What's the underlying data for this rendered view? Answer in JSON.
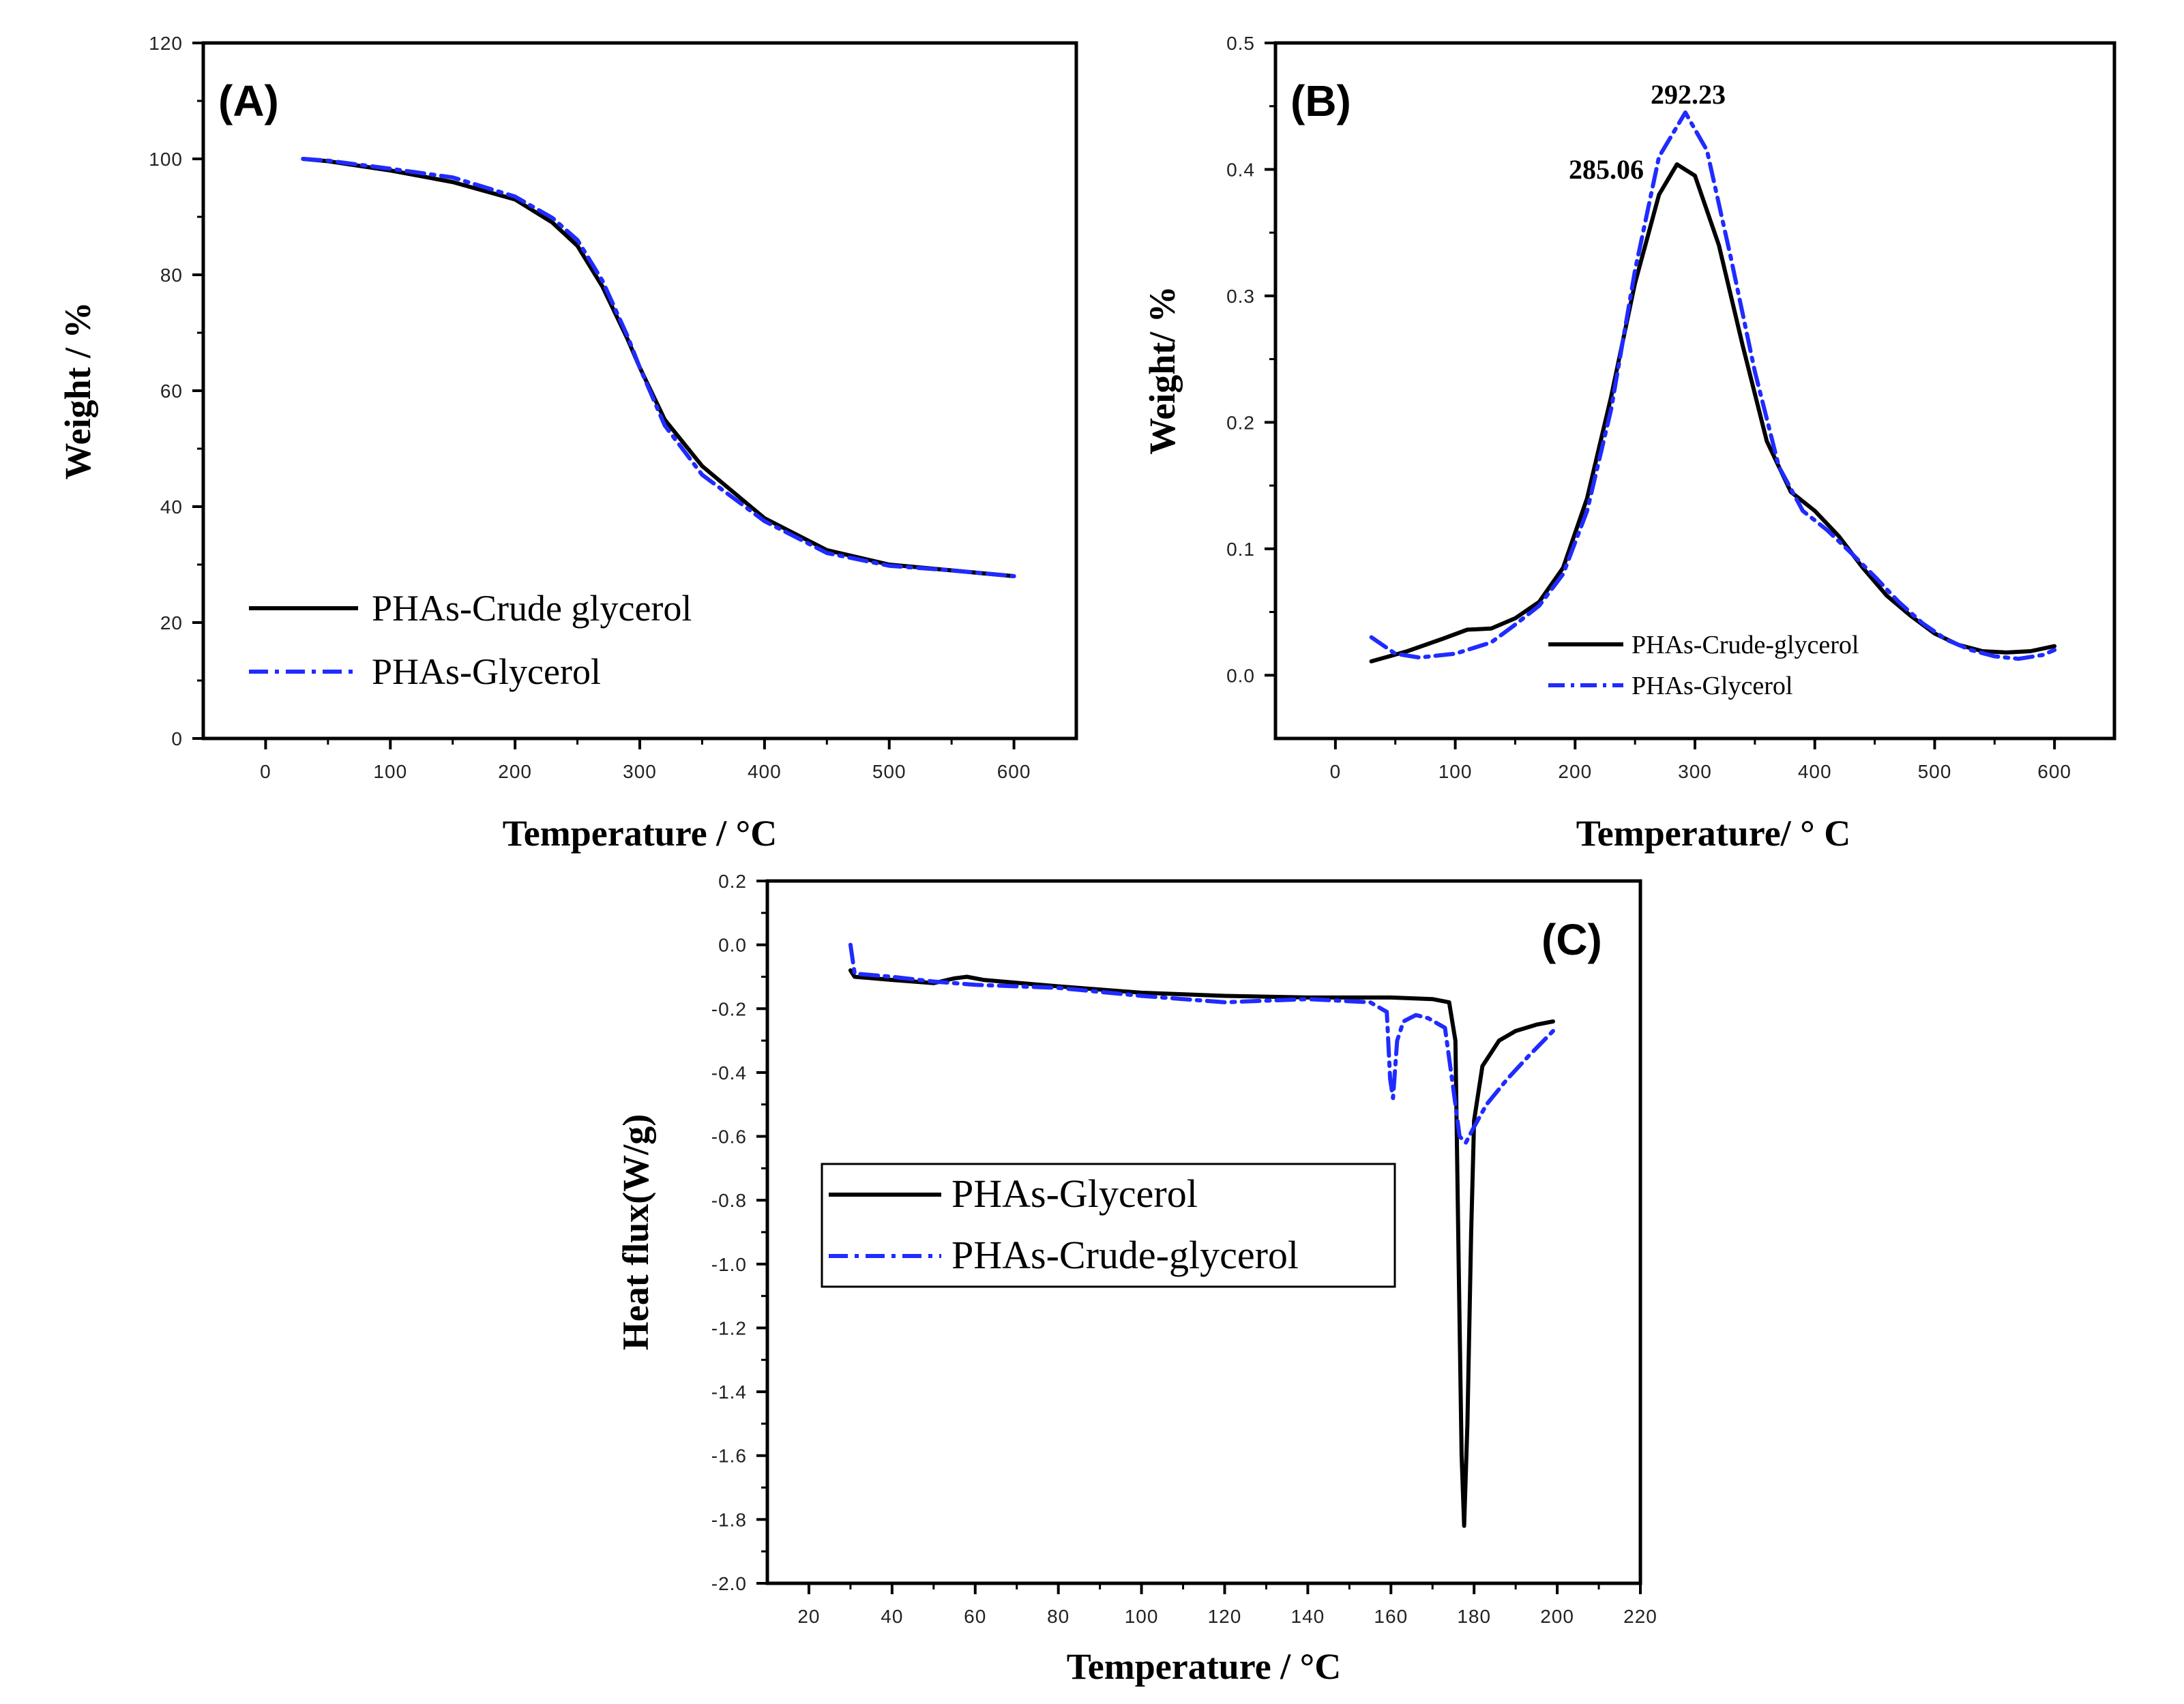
{
  "colors": {
    "black": "#000000",
    "blue": "#1f2bff"
  },
  "chart_data": [
    {
      "type": "line",
      "panel_label": "(A)",
      "xlabel": "Temperature / °C",
      "ylabel": "Weight / %",
      "xlim": [
        -50,
        650
      ],
      "ylim": [
        0,
        120
      ],
      "xticks": [
        "0",
        "100",
        "200",
        "300",
        "400",
        "500",
        "600"
      ],
      "yticks": [
        "0",
        "20",
        "40",
        "60",
        "80",
        "100",
        "120"
      ],
      "legend": [
        "PHAs-Crude glycerol",
        "PHAs-Glycerol"
      ],
      "legend_position": "bottom-left",
      "series": [
        {
          "name": "PHAs-Crude glycerol",
          "style": "solid",
          "color": "#000000",
          "x": [
            30,
            50,
            100,
            150,
            200,
            230,
            250,
            270,
            290,
            300,
            320,
            350,
            400,
            450,
            500,
            550,
            600
          ],
          "y": [
            100,
            99.6,
            98,
            96,
            93,
            89,
            85,
            78,
            69,
            64,
            55,
            47,
            38,
            32.5,
            30,
            29,
            28
          ]
        },
        {
          "name": "PHAs-Glycerol",
          "style": "dashdot",
          "color": "#1f2bff",
          "x": [
            30,
            50,
            100,
            150,
            200,
            230,
            250,
            270,
            290,
            300,
            320,
            350,
            400,
            450,
            500,
            550,
            600
          ],
          "y": [
            100,
            99.7,
            98.3,
            96.8,
            93.5,
            89.8,
            86,
            79,
            69.5,
            64,
            54,
            45.5,
            37.5,
            32,
            29.8,
            29,
            28
          ]
        }
      ]
    },
    {
      "type": "line",
      "panel_label": "(B)",
      "xlabel": "Temperature/ ° C",
      "ylabel": "Weight/ %",
      "xlim": [
        -50,
        650
      ],
      "ylim": [
        -0.05,
        0.5
      ],
      "xticks": [
        "0",
        "100",
        "200",
        "300",
        "400",
        "500",
        "600"
      ],
      "yticks": [
        "0.0",
        "0.1",
        "0.2",
        "0.3",
        "0.4",
        "0.5"
      ],
      "legend": [
        "PHAs-Crude-glycerol",
        "PHAs-Glycerol"
      ],
      "legend_position": "bottom-center",
      "annotations": [
        {
          "text": "292.23",
          "x": 292.23
        },
        {
          "text": "285.06",
          "x": 285.06
        }
      ],
      "series": [
        {
          "name": "PHAs-Crude-glycerol",
          "style": "solid",
          "color": "#000000",
          "x": [
            30,
            60,
            90,
            110,
            130,
            150,
            170,
            190,
            210,
            230,
            250,
            270,
            285,
            300,
            320,
            340,
            360,
            380,
            400,
            420,
            440,
            460,
            480,
            500,
            520,
            540,
            560,
            580,
            600
          ],
          "y": [
            0.011,
            0.019,
            0.029,
            0.036,
            0.037,
            0.045,
            0.058,
            0.085,
            0.14,
            0.22,
            0.31,
            0.38,
            0.404,
            0.395,
            0.34,
            0.26,
            0.185,
            0.145,
            0.13,
            0.11,
            0.085,
            0.063,
            0.047,
            0.033,
            0.024,
            0.019,
            0.018,
            0.019,
            0.023
          ]
        },
        {
          "name": "PHAs-Glycerol",
          "style": "dashdot",
          "color": "#1f2bff",
          "x": [
            30,
            50,
            70,
            100,
            130,
            150,
            170,
            190,
            210,
            230,
            250,
            270,
            292,
            310,
            330,
            350,
            370,
            390,
            410,
            430,
            450,
            470,
            490,
            510,
            530,
            550,
            570,
            590,
            600
          ],
          "y": [
            0.03,
            0.017,
            0.014,
            0.017,
            0.026,
            0.04,
            0.055,
            0.08,
            0.13,
            0.21,
            0.32,
            0.41,
            0.445,
            0.415,
            0.33,
            0.24,
            0.165,
            0.13,
            0.115,
            0.097,
            0.078,
            0.058,
            0.041,
            0.028,
            0.02,
            0.015,
            0.013,
            0.016,
            0.02
          ]
        }
      ]
    },
    {
      "type": "line",
      "panel_label": "(C)",
      "xlabel": "Temperature / °C",
      "ylabel": "Heat flux(W/g)",
      "xlim": [
        10,
        220
      ],
      "ylim": [
        -2.0,
        0.2
      ],
      "xticks": [
        "20",
        "40",
        "60",
        "80",
        "100",
        "120",
        "140",
        "160",
        "180",
        "200",
        "220"
      ],
      "yticks": [
        "0.2",
        "0.0",
        "-0.2",
        "-0.4",
        "-0.6",
        "-0.8",
        "-1.0",
        "-1.2",
        "-1.4",
        "-1.6",
        "-1.8",
        "-2.0"
      ],
      "legend": [
        "PHAs-Glycerol",
        "PHAs-Crude-glycerol"
      ],
      "legend_position": "center-left",
      "series": [
        {
          "name": "PHAs-Glycerol",
          "style": "solid",
          "color": "#000000",
          "x": [
            30,
            31,
            40,
            50,
            55,
            58,
            62,
            80,
            100,
            120,
            140,
            160,
            170,
            174,
            175.5,
            176.3,
            177,
            177.6,
            178.4,
            179.3,
            180,
            182,
            186,
            190,
            195,
            199
          ],
          "y": [
            -0.08,
            -0.1,
            -0.11,
            -0.12,
            -0.105,
            -0.1,
            -0.11,
            -0.13,
            -0.15,
            -0.16,
            -0.165,
            -0.165,
            -0.17,
            -0.18,
            -0.3,
            -1.0,
            -1.6,
            -1.82,
            -1.5,
            -0.9,
            -0.55,
            -0.38,
            -0.3,
            -0.27,
            -0.25,
            -0.24
          ]
        },
        {
          "name": "PHAs-Crude-glycerol",
          "style": "dashdot",
          "color": "#1f2bff",
          "x": [
            30,
            31,
            40,
            50,
            60,
            80,
            100,
            120,
            140,
            155,
            159,
            159.8,
            160.5,
            161.5,
            163,
            166,
            169,
            173,
            175,
            176.5,
            178,
            180,
            183,
            188,
            193,
            199
          ],
          "y": [
            0.0,
            -0.09,
            -0.1,
            -0.115,
            -0.125,
            -0.135,
            -0.16,
            -0.18,
            -0.17,
            -0.18,
            -0.21,
            -0.42,
            -0.48,
            -0.3,
            -0.24,
            -0.22,
            -0.23,
            -0.26,
            -0.45,
            -0.6,
            -0.62,
            -0.57,
            -0.5,
            -0.42,
            -0.35,
            -0.27
          ]
        }
      ]
    }
  ]
}
